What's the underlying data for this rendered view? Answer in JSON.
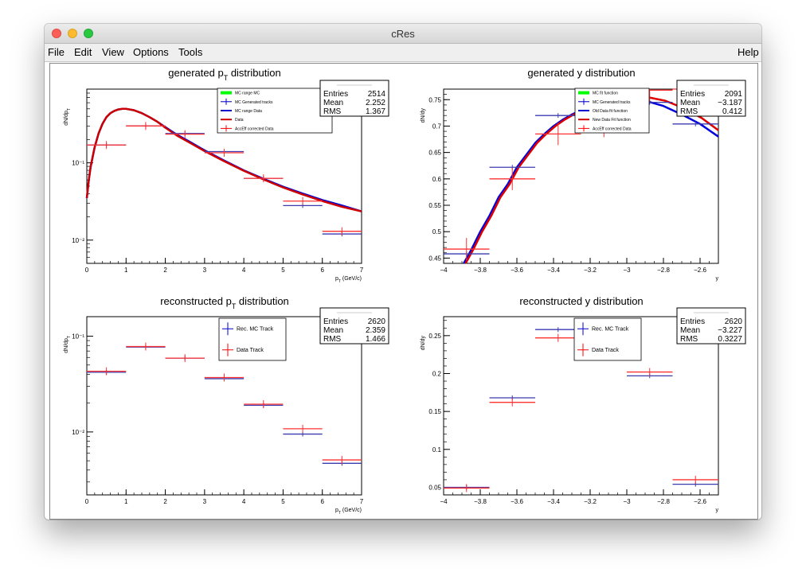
{
  "window": {
    "title": "cRes"
  },
  "menu": {
    "file": "File",
    "edit": "Edit",
    "view": "View",
    "options": "Options",
    "tools": "Tools",
    "help": "Help"
  },
  "panels": [
    {
      "title": "generated p",
      "title_sub": "T",
      "title_suffix": " distribution",
      "ylabel": "dN/dp",
      "ylabel_sub": "T",
      "xlabel": "p",
      "xlabel_sub": "T",
      "xlabel_suffix": " (GeV/c)",
      "stats": {
        "entries_label": "Entries",
        "entries": "2514",
        "mean_label": "Mean",
        "mean": "2.252",
        "rms_label": "RMS",
        "rms": "1.367"
      },
      "legend": [
        {
          "label": "MC range MC",
          "color": "#00ff00",
          "style": "fill"
        },
        {
          "label": "MC Generated tracks",
          "color": "#0000cc",
          "style": "err"
        },
        {
          "label": "MC range Data",
          "color": "#0000cc",
          "style": "line"
        },
        {
          "label": "Data",
          "color": "#cc0000",
          "style": "line"
        },
        {
          "label": "AccEff corrected Data",
          "color": "#ff0000",
          "style": "err"
        }
      ]
    },
    {
      "title": "generated y distribution",
      "ylabel": "dN/dy",
      "xlabel": "y",
      "stats": {
        "entries_label": "Entries",
        "entries": "2091",
        "mean_label": "Mean",
        "mean": "−3.187",
        "rms_label": "RMS",
        "rms": "0.412"
      },
      "legend": [
        {
          "label": "MC fit function",
          "color": "#00ff00",
          "style": "fill"
        },
        {
          "label": "MC Generated tracks",
          "color": "#0000cc",
          "style": "err"
        },
        {
          "label": "Old Data fit function",
          "color": "#0000cc",
          "style": "line"
        },
        {
          "label": "New Data Fit function",
          "color": "#cc0000",
          "style": "line"
        },
        {
          "label": "AccEff corrected Data",
          "color": "#ff0000",
          "style": "err"
        }
      ]
    },
    {
      "title": "reconstructed p",
      "title_sub": "T",
      "title_suffix": " distribution",
      "ylabel": "dN/dp",
      "ylabel_sub": "T",
      "xlabel": "p",
      "xlabel_sub": "T",
      "xlabel_suffix": " (GeV/c)",
      "stats": {
        "entries_label": "Entries",
        "entries": "2620",
        "mean_label": "Mean",
        "mean": "2.359",
        "rms_label": "RMS",
        "rms": "1.466"
      },
      "legend": [
        {
          "label": "Rec. MC Track",
          "color": "#0000cc",
          "style": "err"
        },
        {
          "label": "Data Track",
          "color": "#ff0000",
          "style": "err"
        }
      ]
    },
    {
      "title": "reconstructed y distribution",
      "ylabel": "dN/dy",
      "xlabel": "y",
      "stats": {
        "entries_label": "Entries",
        "entries": "2620",
        "mean_label": "Mean",
        "mean": "−3.227",
        "rms_label": "RMS",
        "rms": "0.3227"
      },
      "legend": [
        {
          "label": "Rec. MC Track",
          "color": "#0000cc",
          "style": "err"
        },
        {
          "label": "Data Track",
          "color": "#ff0000",
          "style": "err"
        }
      ]
    }
  ],
  "chart_data": [
    {
      "type": "line",
      "title": "generated pT distribution",
      "xlabel": "pT (GeV/c)",
      "ylabel": "dN/dpT",
      "xlim": [
        0,
        7
      ],
      "ylim": [
        0.005,
        0.9
      ],
      "yscale": "log",
      "x_ticks": [
        "0",
        "1",
        "2",
        "3",
        "4",
        "5",
        "6",
        "7"
      ],
      "y_ticks": [
        {
          "v": 0.1,
          "label": "10⁻¹"
        },
        {
          "v": 0.01,
          "label": "10⁻²"
        }
      ],
      "hist": [
        {
          "name": "MC Generated tracks",
          "color": "#3b3bb0",
          "bins": [
            [
              0,
              1,
              0.17
            ],
            [
              1,
              2,
              0.3
            ],
            [
              2,
              3,
              0.24
            ],
            [
              3,
              4,
              0.14
            ],
            [
              4,
              5,
              0.063
            ],
            [
              5,
              6,
              0.028
            ],
            [
              6,
              7,
              0.012
            ]
          ]
        },
        {
          "name": "AccEff corrected Data",
          "color": "#ff3030",
          "bins": [
            [
              0,
              1,
              0.17
            ],
            [
              1,
              2,
              0.3
            ],
            [
              2,
              3,
              0.235
            ],
            [
              3,
              4,
              0.135
            ],
            [
              4,
              5,
              0.063
            ],
            [
              5,
              6,
              0.032
            ],
            [
              6,
              7,
              0.013
            ]
          ]
        }
      ],
      "curves": [
        {
          "name": "MC range Data",
          "color": "#0000dd",
          "width": 2.5,
          "x": [
            0,
            0.05,
            0.1,
            0.2,
            0.3,
            0.4,
            0.5,
            0.6,
            0.7,
            0.8,
            0.9,
            1.0,
            1.2,
            1.4,
            1.6,
            1.8,
            2.0,
            2.3,
            2.6,
            3.0,
            3.5,
            4.0,
            4.5,
            5.0,
            5.5,
            6.0,
            6.5,
            7.0
          ],
          "y": [
            0.035,
            0.06,
            0.09,
            0.16,
            0.24,
            0.32,
            0.39,
            0.44,
            0.47,
            0.49,
            0.5,
            0.5,
            0.48,
            0.44,
            0.39,
            0.34,
            0.29,
            0.23,
            0.19,
            0.145,
            0.107,
            0.08,
            0.062,
            0.049,
            0.04,
            0.033,
            0.028,
            0.0235
          ]
        },
        {
          "name": "Data",
          "color": "#cc0000",
          "width": 2.5,
          "x": [
            0,
            0.05,
            0.1,
            0.2,
            0.3,
            0.4,
            0.5,
            0.6,
            0.7,
            0.8,
            0.9,
            1.0,
            1.2,
            1.4,
            1.6,
            1.8,
            2.0,
            2.3,
            2.6,
            3.0,
            3.5,
            4.0,
            4.5,
            5.0,
            5.5,
            6.0,
            6.5,
            7.0
          ],
          "y": [
            0.035,
            0.06,
            0.09,
            0.16,
            0.24,
            0.32,
            0.39,
            0.44,
            0.47,
            0.49,
            0.5,
            0.5,
            0.48,
            0.44,
            0.39,
            0.34,
            0.285,
            0.225,
            0.185,
            0.142,
            0.105,
            0.079,
            0.061,
            0.048,
            0.039,
            0.032,
            0.027,
            0.0235
          ]
        }
      ]
    },
    {
      "type": "line",
      "title": "generated y distribution",
      "xlabel": "y",
      "ylabel": "dN/dy",
      "xlim": [
        -4,
        -2.5
      ],
      "ylim": [
        0.44,
        0.77
      ],
      "x_ticks": [
        "−4",
        "−3.8",
        "−3.6",
        "−3.4",
        "−3.2",
        "−3",
        "−2.8",
        "−2.6"
      ],
      "y_ticks": [
        {
          "v": 0.45,
          "label": "0.45"
        },
        {
          "v": 0.5,
          "label": "0.5"
        },
        {
          "v": 0.55,
          "label": "0.55"
        },
        {
          "v": 0.6,
          "label": "0.6"
        },
        {
          "v": 0.65,
          "label": "0.65"
        },
        {
          "v": 0.7,
          "label": "0.7"
        },
        {
          "v": 0.75,
          "label": "0.75"
        }
      ],
      "hist": [
        {
          "name": "MC Generated tracks",
          "color": "#3b3bb0",
          "bins": [
            [
              -4,
              -3.75,
              0.458
            ],
            [
              -3.75,
              -3.5,
              0.622
            ],
            [
              -3.5,
              -3.25,
              0.72
            ],
            [
              -3.25,
              -3.0,
              0.75
            ],
            [
              -3.0,
              -2.75,
              0.745
            ],
            [
              -2.75,
              -2.5,
              0.704
            ]
          ]
        },
        {
          "name": "AccEff corrected Data",
          "color": "#ff3030",
          "bins": [
            [
              -4,
              -3.75,
              0.467
            ],
            [
              -3.75,
              -3.5,
              0.6
            ],
            [
              -3.5,
              -3.25,
              0.685
            ],
            [
              -3.25,
              -3.0,
              0.7
            ],
            [
              -3.0,
              -2.75,
              0.768
            ],
            [
              -2.75,
              -2.5,
              0.77
            ]
          ]
        }
      ],
      "curves": [
        {
          "name": "Old Data fit function",
          "color": "#0000dd",
          "width": 2.5,
          "x": [
            -3.89,
            -3.85,
            -3.8,
            -3.75,
            -3.7,
            -3.65,
            -3.6,
            -3.55,
            -3.5,
            -3.45,
            -3.4,
            -3.35,
            -3.3,
            -3.2,
            -3.1,
            -3.0,
            -2.9,
            -2.8,
            -2.7,
            -2.6,
            -2.5
          ],
          "y": [
            0.44,
            0.465,
            0.5,
            0.53,
            0.565,
            0.59,
            0.622,
            0.645,
            0.668,
            0.685,
            0.7,
            0.712,
            0.722,
            0.738,
            0.748,
            0.752,
            0.748,
            0.738,
            0.722,
            0.704,
            0.68
          ]
        },
        {
          "name": "New Data Fit function",
          "color": "#dd0000",
          "width": 2.5,
          "x": [
            -3.88,
            -3.84,
            -3.79,
            -3.74,
            -3.69,
            -3.64,
            -3.59,
            -3.54,
            -3.49,
            -3.44,
            -3.39,
            -3.34,
            -3.29,
            -3.19,
            -3.09,
            -2.99,
            -2.89,
            -2.79,
            -2.69,
            -2.59,
            -2.5
          ],
          "y": [
            0.44,
            0.465,
            0.5,
            0.53,
            0.565,
            0.59,
            0.622,
            0.645,
            0.668,
            0.685,
            0.7,
            0.712,
            0.722,
            0.738,
            0.75,
            0.756,
            0.755,
            0.748,
            0.734,
            0.715,
            0.692
          ]
        }
      ]
    },
    {
      "type": "bar",
      "title": "reconstructed pT distribution",
      "xlabel": "pT (GeV/c)",
      "ylabel": "dN/dpT",
      "xlim": [
        0,
        7
      ],
      "ylim": [
        0.0022,
        0.16
      ],
      "yscale": "log",
      "x_ticks": [
        "0",
        "1",
        "2",
        "3",
        "4",
        "5",
        "6",
        "7"
      ],
      "y_ticks": [
        {
          "v": 0.1,
          "label": "10⁻¹"
        },
        {
          "v": 0.01,
          "label": "10⁻²"
        }
      ],
      "hist": [
        {
          "name": "Rec. MC Track",
          "color": "#3b3bb0",
          "bins": [
            [
              0,
              1,
              0.042
            ],
            [
              1,
              2,
              0.077
            ],
            [
              2,
              3,
              0.059
            ],
            [
              3,
              4,
              0.036
            ],
            [
              4,
              5,
              0.019
            ],
            [
              5,
              6,
              0.0095
            ],
            [
              6,
              7,
              0.0047
            ]
          ]
        },
        {
          "name": "Data Track",
          "color": "#ff3030",
          "bins": [
            [
              0,
              1,
              0.043
            ],
            [
              1,
              2,
              0.078
            ],
            [
              2,
              3,
              0.059
            ],
            [
              3,
              4,
              0.037
            ],
            [
              4,
              5,
              0.0195
            ],
            [
              5,
              6,
              0.0108
            ],
            [
              6,
              7,
              0.0051
            ]
          ]
        }
      ],
      "curves": []
    },
    {
      "type": "bar",
      "title": "reconstructed y distribution",
      "xlabel": "y",
      "ylabel": "dN/dy",
      "xlim": [
        -4,
        -2.5
      ],
      "ylim": [
        0.04,
        0.275
      ],
      "x_ticks": [
        "−4",
        "−3.8",
        "−3.6",
        "−3.4",
        "−3.2",
        "−3",
        "−2.8",
        "−2.6"
      ],
      "y_ticks": [
        {
          "v": 0.05,
          "label": "0.05"
        },
        {
          "v": 0.1,
          "label": "0.1"
        },
        {
          "v": 0.15,
          "label": "0.15"
        },
        {
          "v": 0.2,
          "label": "0.2"
        },
        {
          "v": 0.25,
          "label": "0.25"
        }
      ],
      "hist": [
        {
          "name": "Rec. MC Track",
          "color": "#3b3bb0",
          "bins": [
            [
              -4,
              -3.75,
              0.05
            ],
            [
              -3.75,
              -3.5,
              0.168
            ],
            [
              -3.5,
              -3.25,
              0.258
            ],
            [
              -3.25,
              -3.0,
              0.0
            ],
            [
              -3.0,
              -2.75,
              0.197
            ],
            [
              -2.75,
              -2.5,
              0.054
            ]
          ]
        },
        {
          "name": "Data Track",
          "color": "#ff3030",
          "bins": [
            [
              -4,
              -3.75,
              0.049
            ],
            [
              -3.75,
              -3.5,
              0.162
            ],
            [
              -3.5,
              -3.25,
              0.247
            ],
            [
              -3.25,
              -3.0,
              0.0
            ],
            [
              -3.0,
              -2.75,
              0.202
            ],
            [
              -2.75,
              -2.5,
              0.06
            ]
          ]
        }
      ],
      "curves": []
    }
  ]
}
